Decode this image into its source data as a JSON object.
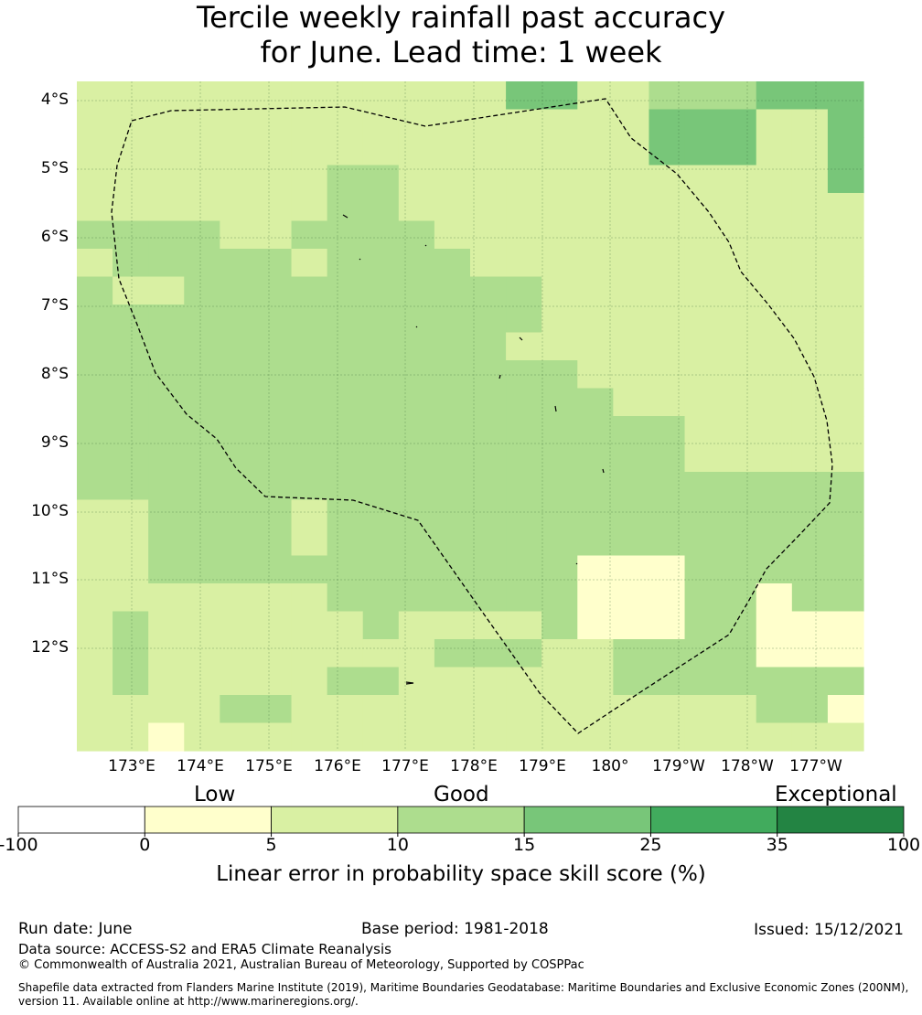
{
  "title": {
    "line1": "Tercile weekly rainfall past accuracy",
    "line2": "for June. Lead time: 1 week"
  },
  "map": {
    "lat_labels": [
      "4°S",
      "5°S",
      "6°S",
      "7°S",
      "8°S",
      "9°S",
      "10°S",
      "11°S",
      "12°S"
    ],
    "lon_labels": [
      "173°E",
      "174°E",
      "175°E",
      "176°E",
      "177°E",
      "178°E",
      "179°E",
      "180°",
      "179°W",
      "178°W",
      "177°W"
    ],
    "grid_levels": [
      [
        2,
        2,
        2,
        2,
        2,
        2,
        2,
        2,
        2,
        2,
        2,
        2,
        4,
        4,
        2,
        2,
        3,
        3,
        3,
        4,
        4,
        4
      ],
      [
        2,
        2,
        2,
        2,
        2,
        2,
        2,
        2,
        2,
        2,
        2,
        2,
        2,
        2,
        2,
        2,
        4,
        4,
        4,
        2,
        2,
        4
      ],
      [
        2,
        2,
        2,
        2,
        2,
        2,
        2,
        2,
        2,
        2,
        2,
        2,
        2,
        2,
        2,
        2,
        4,
        4,
        4,
        2,
        2,
        4
      ],
      [
        2,
        2,
        2,
        2,
        2,
        2,
        2,
        3,
        3,
        2,
        2,
        2,
        2,
        2,
        2,
        2,
        2,
        2,
        2,
        2,
        2,
        4
      ],
      [
        2,
        2,
        2,
        2,
        2,
        2,
        2,
        3,
        3,
        2,
        2,
        2,
        2,
        2,
        2,
        2,
        2,
        2,
        2,
        2,
        2,
        2
      ],
      [
        3,
        3,
        3,
        3,
        2,
        2,
        3,
        3,
        3,
        3,
        2,
        2,
        2,
        2,
        2,
        2,
        2,
        2,
        2,
        2,
        2,
        2
      ],
      [
        2,
        3,
        3,
        3,
        3,
        3,
        2,
        3,
        3,
        3,
        3,
        2,
        2,
        2,
        2,
        2,
        2,
        2,
        2,
        2,
        2,
        2
      ],
      [
        3,
        2,
        2,
        3,
        3,
        3,
        3,
        3,
        3,
        3,
        3,
        3,
        3,
        2,
        2,
        2,
        2,
        2,
        2,
        2,
        2,
        2
      ],
      [
        3,
        3,
        3,
        3,
        3,
        3,
        3,
        3,
        3,
        3,
        3,
        3,
        3,
        2,
        2,
        2,
        2,
        2,
        2,
        2,
        2,
        2
      ],
      [
        3,
        3,
        3,
        3,
        3,
        3,
        3,
        3,
        3,
        3,
        3,
        3,
        2,
        2,
        2,
        2,
        2,
        2,
        2,
        2,
        2,
        2
      ],
      [
        3,
        3,
        3,
        3,
        3,
        3,
        3,
        3,
        3,
        3,
        3,
        3,
        3,
        3,
        2,
        2,
        2,
        2,
        2,
        2,
        2,
        2
      ],
      [
        3,
        3,
        3,
        3,
        3,
        3,
        3,
        3,
        3,
        3,
        3,
        3,
        3,
        3,
        3,
        2,
        2,
        2,
        2,
        2,
        2,
        2
      ],
      [
        3,
        3,
        3,
        3,
        3,
        3,
        3,
        3,
        3,
        3,
        3,
        3,
        3,
        3,
        3,
        3,
        3,
        2,
        2,
        2,
        2,
        2
      ],
      [
        3,
        3,
        3,
        3,
        3,
        3,
        3,
        3,
        3,
        3,
        3,
        3,
        3,
        3,
        3,
        3,
        3,
        2,
        2,
        2,
        2,
        2
      ],
      [
        3,
        3,
        3,
        3,
        3,
        3,
        3,
        3,
        3,
        3,
        3,
        3,
        3,
        3,
        3,
        3,
        3,
        3,
        3,
        3,
        3,
        3
      ],
      [
        2,
        2,
        3,
        3,
        3,
        3,
        2,
        3,
        3,
        3,
        3,
        3,
        3,
        3,
        3,
        3,
        3,
        3,
        3,
        3,
        3,
        3
      ],
      [
        2,
        2,
        3,
        3,
        3,
        3,
        2,
        3,
        3,
        3,
        3,
        3,
        3,
        3,
        3,
        3,
        3,
        3,
        3,
        3,
        3,
        3
      ],
      [
        2,
        2,
        3,
        3,
        3,
        3,
        3,
        3,
        3,
        3,
        3,
        3,
        3,
        3,
        1,
        1,
        1,
        3,
        3,
        3,
        3,
        3
      ],
      [
        2,
        2,
        2,
        2,
        2,
        2,
        2,
        3,
        3,
        3,
        3,
        3,
        3,
        3,
        1,
        1,
        1,
        3,
        3,
        1,
        3,
        3
      ],
      [
        2,
        3,
        2,
        2,
        2,
        2,
        2,
        2,
        3,
        2,
        2,
        2,
        2,
        3,
        1,
        1,
        1,
        3,
        3,
        1,
        1,
        1
      ],
      [
        2,
        3,
        2,
        2,
        2,
        2,
        2,
        2,
        2,
        2,
        3,
        3,
        3,
        2,
        2,
        3,
        3,
        3,
        3,
        1,
        1,
        1
      ],
      [
        2,
        3,
        2,
        2,
        2,
        2,
        2,
        3,
        3,
        2,
        2,
        2,
        2,
        2,
        2,
        3,
        3,
        3,
        3,
        3,
        3,
        3
      ],
      [
        2,
        2,
        2,
        2,
        3,
        3,
        2,
        2,
        2,
        2,
        2,
        2,
        2,
        2,
        2,
        2,
        2,
        2,
        2,
        3,
        3,
        1
      ],
      [
        2,
        2,
        1,
        2,
        2,
        2,
        2,
        2,
        2,
        2,
        2,
        2,
        2,
        2,
        2,
        2,
        2,
        2,
        2,
        2,
        2,
        2
      ]
    ]
  },
  "legend": {
    "categories": [
      "Low",
      "Good",
      "Exceptional"
    ],
    "ticks": [
      "-100",
      "0",
      "5",
      "10",
      "15",
      "25",
      "35",
      "100"
    ],
    "colors": [
      "#ffffff",
      "#ffffcc",
      "#d9f0a3",
      "#addd8e",
      "#78c679",
      "#41ab5d",
      "#238443"
    ],
    "label": "Linear error in probability space skill score (%)"
  },
  "footer": {
    "run_date": "Run date: June",
    "base_period": "Base period: 1981-2018",
    "issued": "Issued: 15/12/2021",
    "data_source": "Data source: ACCESS-S2 and ERA5 Climate Reanalysis",
    "copyright": "© Commonwealth of Australia 2021, Australian Bureau of Meteorology, Supported by COSPPac",
    "shapefile_line1": "Shapefile data extracted from Flanders Marine Institute (2019), Maritime Boundaries Geodatabase: Maritime Boundaries and Exclusive Economic Zones (200NM),",
    "shapefile_line2": "version 11. Available online at http://www.marineregions.org/."
  }
}
